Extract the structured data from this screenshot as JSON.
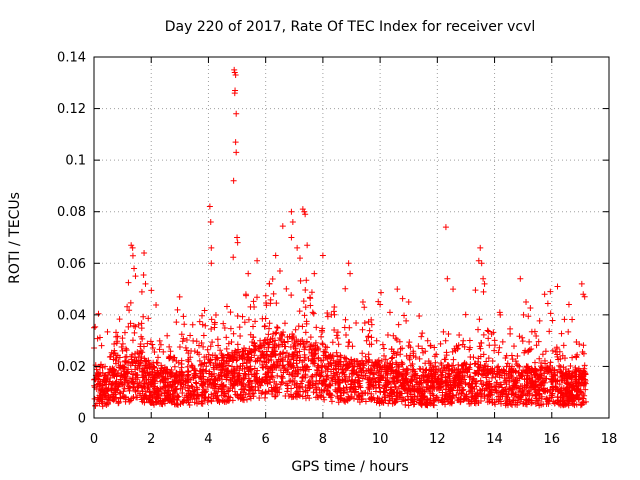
{
  "chart_data": {
    "type": "scatter",
    "title": "Day 220 of 2017, Rate Of TEC Index for receiver vcvl",
    "xlabel": "GPS time / hours",
    "ylabel": "ROTI / TECUs",
    "xlim": [
      0,
      18
    ],
    "ylim": [
      0,
      0.14
    ],
    "xticks": [
      0,
      2,
      4,
      6,
      8,
      10,
      12,
      14,
      16,
      18
    ],
    "xtick_labels": [
      "0",
      "2",
      "4",
      "6",
      "8",
      "10",
      "12",
      "14",
      "16",
      "18"
    ],
    "yticks": [
      0,
      0.02,
      0.04,
      0.06,
      0.08,
      0.1,
      0.12,
      0.14
    ],
    "ytick_labels": [
      "0",
      "0.02",
      "0.04",
      "0.06",
      "0.08",
      "0.1",
      "0.12",
      "0.14"
    ],
    "grid": true,
    "marker": "+",
    "color": "#ff0000",
    "x_data_range": [
      0,
      17.2
    ],
    "approx_point_count": 3500,
    "series": [
      {
        "name": "ROTI",
        "envelope": {
          "hours": [
            0,
            0.5,
            1,
            1.5,
            2,
            2.5,
            3,
            3.5,
            4,
            4.5,
            5,
            5.5,
            6,
            6.5,
            7,
            7.5,
            8,
            8.5,
            9,
            9.5,
            10,
            10.5,
            11,
            11.5,
            12,
            12.5,
            13,
            13.5,
            14,
            14.5,
            15,
            15.5,
            16,
            16.5,
            17,
            17.2
          ],
          "typical_roti": [
            0.014,
            0.016,
            0.018,
            0.022,
            0.017,
            0.016,
            0.016,
            0.017,
            0.019,
            0.02,
            0.022,
            0.024,
            0.026,
            0.028,
            0.026,
            0.025,
            0.022,
            0.02,
            0.019,
            0.019,
            0.018,
            0.018,
            0.016,
            0.016,
            0.016,
            0.017,
            0.018,
            0.018,
            0.016,
            0.016,
            0.017,
            0.016,
            0.016,
            0.016,
            0.016,
            0.016
          ]
        },
        "notable_points": [
          {
            "x": 0.0,
            "y": 0.035
          },
          {
            "x": 1.3,
            "y": 0.067
          },
          {
            "x": 1.35,
            "y": 0.066
          },
          {
            "x": 1.4,
            "y": 0.058
          },
          {
            "x": 1.45,
            "y": 0.055
          },
          {
            "x": 1.75,
            "y": 0.064
          },
          {
            "x": 1.8,
            "y": 0.052
          },
          {
            "x": 4.05,
            "y": 0.082
          },
          {
            "x": 4.08,
            "y": 0.076
          },
          {
            "x": 4.1,
            "y": 0.066
          },
          {
            "x": 4.1,
            "y": 0.06
          },
          {
            "x": 4.9,
            "y": 0.135
          },
          {
            "x": 4.92,
            "y": 0.134
          },
          {
            "x": 4.95,
            "y": 0.133
          },
          {
            "x": 4.93,
            "y": 0.127
          },
          {
            "x": 4.92,
            "y": 0.126
          },
          {
            "x": 4.97,
            "y": 0.118
          },
          {
            "x": 4.95,
            "y": 0.107
          },
          {
            "x": 4.97,
            "y": 0.103
          },
          {
            "x": 4.88,
            "y": 0.092
          },
          {
            "x": 5.0,
            "y": 0.07
          },
          {
            "x": 5.02,
            "y": 0.068
          },
          {
            "x": 5.7,
            "y": 0.061
          },
          {
            "x": 6.35,
            "y": 0.063
          },
          {
            "x": 6.5,
            "y": 0.057
          },
          {
            "x": 6.9,
            "y": 0.08
          },
          {
            "x": 6.95,
            "y": 0.076
          },
          {
            "x": 6.9,
            "y": 0.07
          },
          {
            "x": 7.3,
            "y": 0.081
          },
          {
            "x": 7.35,
            "y": 0.08
          },
          {
            "x": 7.38,
            "y": 0.079
          },
          {
            "x": 7.1,
            "y": 0.066
          },
          {
            "x": 7.45,
            "y": 0.067
          },
          {
            "x": 7.2,
            "y": 0.062
          },
          {
            "x": 7.7,
            "y": 0.056
          },
          {
            "x": 8.0,
            "y": 0.063
          },
          {
            "x": 8.9,
            "y": 0.06
          },
          {
            "x": 8.95,
            "y": 0.056
          },
          {
            "x": 9.4,
            "y": 0.045
          },
          {
            "x": 10.0,
            "y": 0.044
          },
          {
            "x": 10.6,
            "y": 0.05
          },
          {
            "x": 11.0,
            "y": 0.045
          },
          {
            "x": 12.3,
            "y": 0.074
          },
          {
            "x": 12.35,
            "y": 0.054
          },
          {
            "x": 12.55,
            "y": 0.05
          },
          {
            "x": 13.5,
            "y": 0.066
          },
          {
            "x": 13.45,
            "y": 0.061
          },
          {
            "x": 13.55,
            "y": 0.06
          },
          {
            "x": 13.6,
            "y": 0.054
          },
          {
            "x": 13.65,
            "y": 0.052
          },
          {
            "x": 14.2,
            "y": 0.04
          },
          {
            "x": 14.9,
            "y": 0.054
          },
          {
            "x": 15.1,
            "y": 0.045
          },
          {
            "x": 15.75,
            "y": 0.048
          },
          {
            "x": 15.95,
            "y": 0.049
          },
          {
            "x": 16.2,
            "y": 0.051
          },
          {
            "x": 16.6,
            "y": 0.044
          },
          {
            "x": 17.05,
            "y": 0.052
          },
          {
            "x": 17.1,
            "y": 0.048
          },
          {
            "x": 17.15,
            "y": 0.047
          }
        ]
      }
    ]
  }
}
